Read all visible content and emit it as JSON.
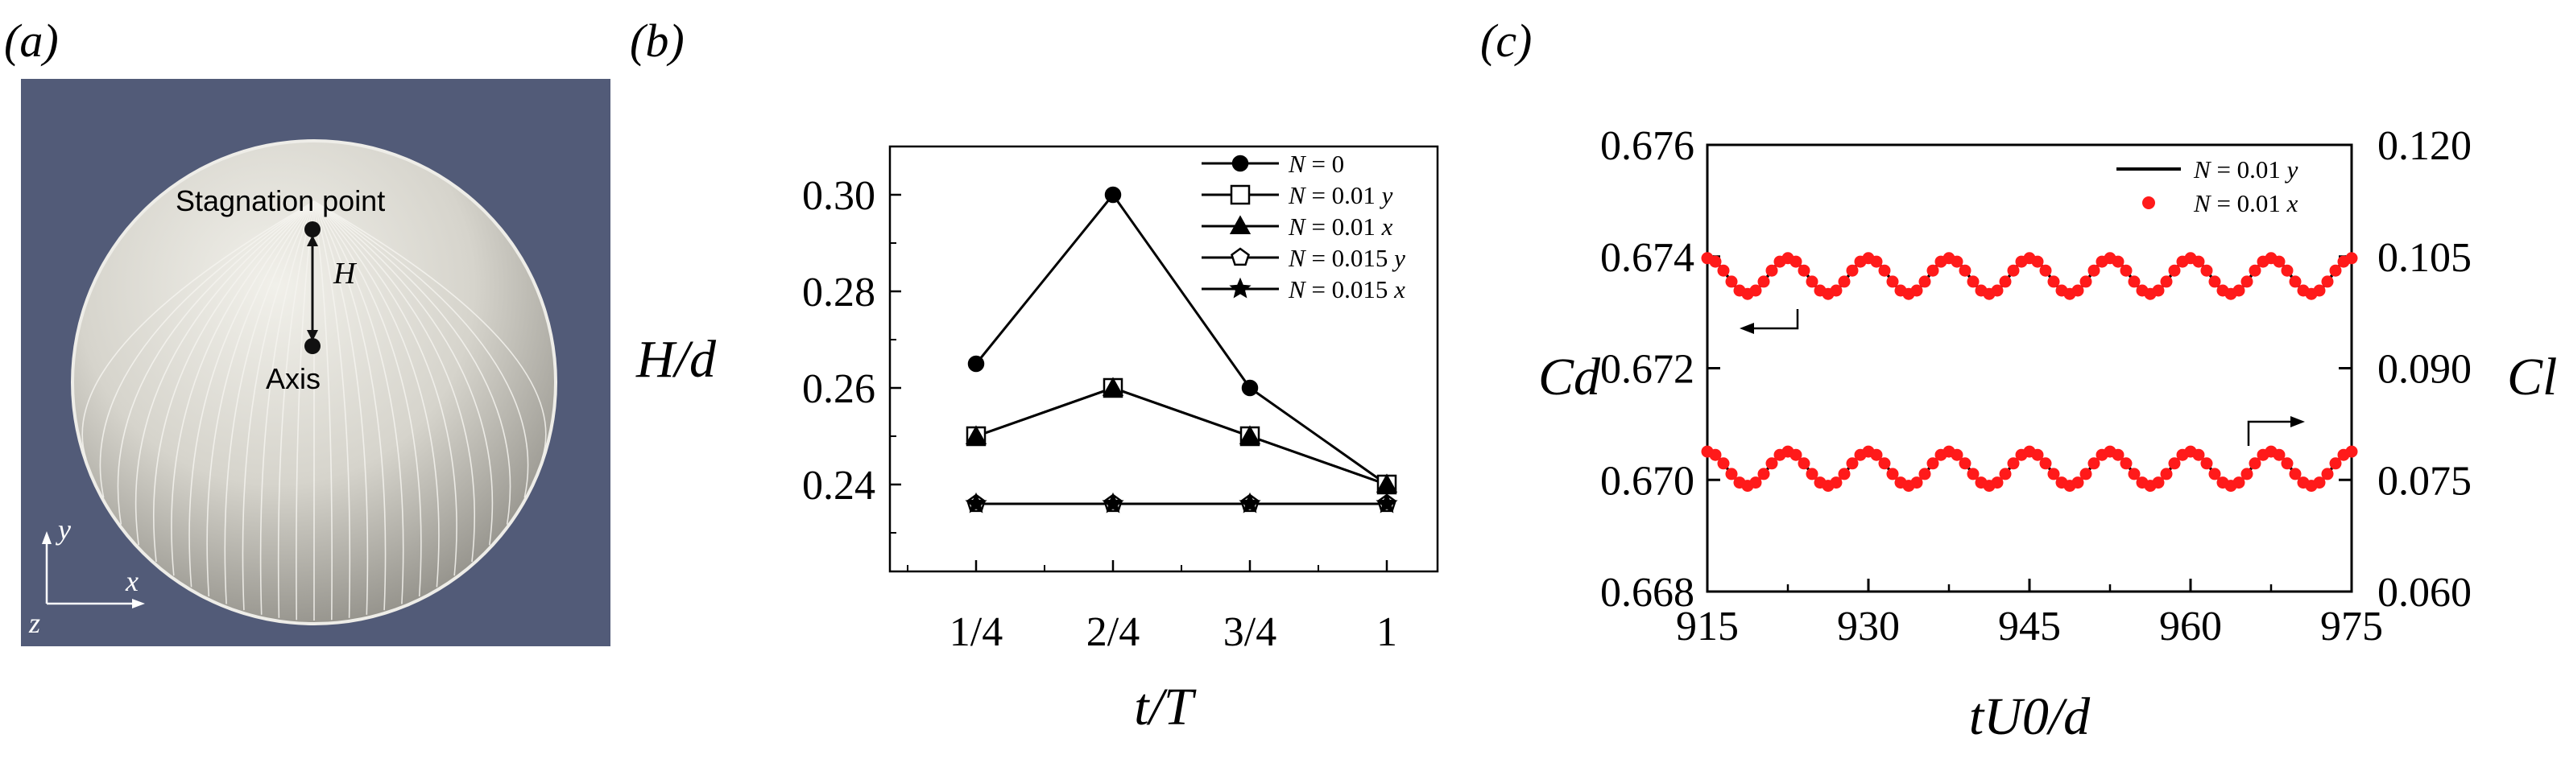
{
  "panels": {
    "a": {
      "label": "(a)",
      "annotations": {
        "stagnation": "Stagnation point",
        "axis": "Axis",
        "h": "H"
      },
      "axes": {
        "y": "y",
        "x": "x",
        "z": "z"
      },
      "colors": {
        "background": "#525b78",
        "sphere": "#d9d7cf",
        "streamline": "#f4f3ee"
      }
    },
    "b": {
      "label": "(b)"
    },
    "c": {
      "label": "(c)"
    }
  },
  "chart_data": [
    {
      "type": "line",
      "panel": "b",
      "title": "",
      "xlabel": "t/T",
      "ylabel": "H/d",
      "categories": [
        "1/4",
        "2/4",
        "3/4",
        "1"
      ],
      "ylim": [
        0.222,
        0.31
      ],
      "yticks": [
        "0.24",
        "0.26",
        "0.28",
        "0.30"
      ],
      "series": [
        {
          "name": "N = 0",
          "marker": "circle",
          "values": [
            0.265,
            0.3,
            0.26,
            0.24
          ]
        },
        {
          "name": "N = 0.01 y",
          "marker": "square-open",
          "values": [
            0.25,
            0.26,
            0.25,
            0.24
          ]
        },
        {
          "name": "N = 0.01 x",
          "marker": "triangle",
          "values": [
            0.25,
            0.26,
            0.25,
            0.24
          ]
        },
        {
          "name": "N = 0.015 y",
          "marker": "pentagon-open",
          "values": [
            0.236,
            0.236,
            0.236,
            0.236
          ]
        },
        {
          "name": "N = 0.015 x",
          "marker": "star",
          "values": [
            0.236,
            0.236,
            0.236,
            0.236
          ]
        }
      ],
      "legend": "top-right"
    },
    {
      "type": "line",
      "panel": "c",
      "title": "",
      "xlabel": "tU0/d",
      "ylabel_left": "Cd",
      "ylabel_right": "Cl",
      "xlim": [
        915,
        975
      ],
      "xticks": [
        "915",
        "930",
        "945",
        "960",
        "975"
      ],
      "ylim_left": [
        0.668,
        0.676
      ],
      "yticks_left": [
        "0.668",
        "0.670",
        "0.672",
        "0.674",
        "0.676"
      ],
      "ylim_right": [
        0.06,
        0.12
      ],
      "yticks_right": [
        "0.060",
        "0.075",
        "0.090",
        "0.105",
        "0.120"
      ],
      "oscillation_period": 7.5,
      "drag": {
        "mean": 0.67365,
        "amplitude": 0.00032,
        "phase": 0
      },
      "lift": {
        "mean": 0.0765,
        "amplitude": 0.0023,
        "phase": 0
      },
      "series": [
        {
          "name": "N = 0.01 y",
          "style": "line",
          "color": "#000000"
        },
        {
          "name": "N = 0.01 x",
          "style": "dots",
          "color": "#ff1a1a"
        }
      ],
      "legend": "top-right"
    }
  ]
}
